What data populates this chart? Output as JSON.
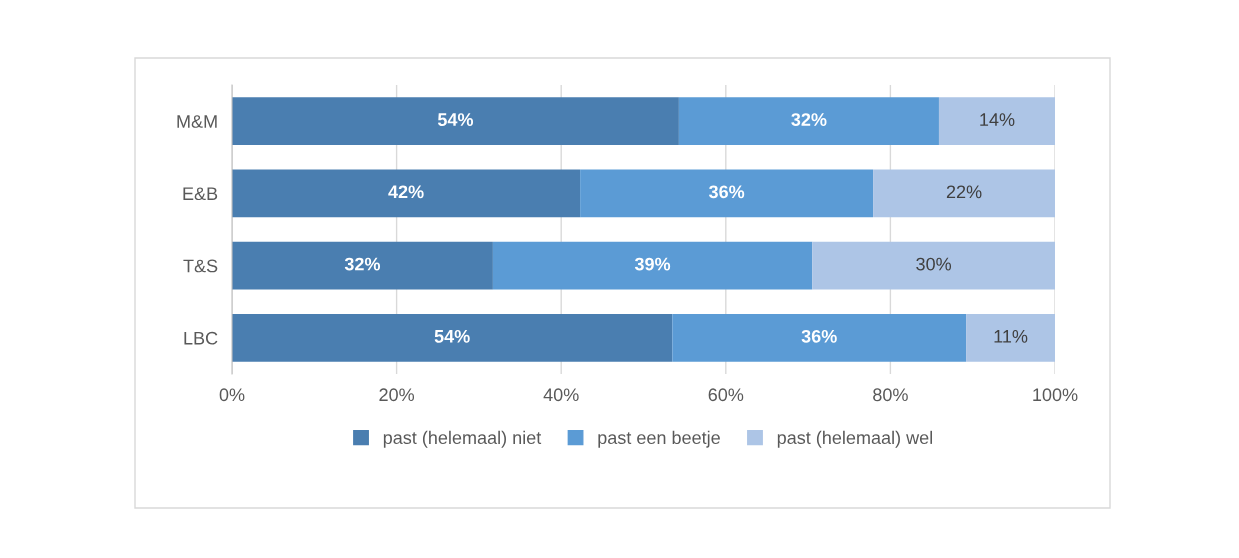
{
  "chart_data": {
    "type": "bar",
    "orientation": "horizontal",
    "stacked": true,
    "categories": [
      "M&M",
      "E&B",
      "T&S",
      "LBC"
    ],
    "series": [
      {
        "name": "past (helemaal) niet",
        "color": "#4a7eb0",
        "values": [
          54.3,
          42.3,
          31.7,
          53.5
        ],
        "value_labels": [
          "54%",
          "42%",
          "32%",
          "54%"
        ]
      },
      {
        "name": "past een beetje",
        "color": "#5b9bd5",
        "values": [
          31.6,
          35.6,
          38.8,
          35.7
        ],
        "value_labels": [
          "32%",
          "36%",
          "39%",
          "36%"
        ]
      },
      {
        "name": "past (helemaal) wel",
        "color": "#adc5e6",
        "values": [
          14.1,
          22.1,
          29.5,
          10.8
        ],
        "value_labels": [
          "14%",
          "22%",
          "30%",
          "11%"
        ]
      }
    ],
    "xlim": [
      0,
      100
    ],
    "xticks": [
      {
        "value": 0,
        "label": "0%"
      },
      {
        "value": 20,
        "label": "20%"
      },
      {
        "value": 40,
        "label": "40%"
      },
      {
        "value": 60,
        "label": "60%"
      },
      {
        "value": 80,
        "label": "80%"
      },
      {
        "value": 100,
        "label": "100%"
      }
    ],
    "grid": "x",
    "legend": "bottom"
  }
}
